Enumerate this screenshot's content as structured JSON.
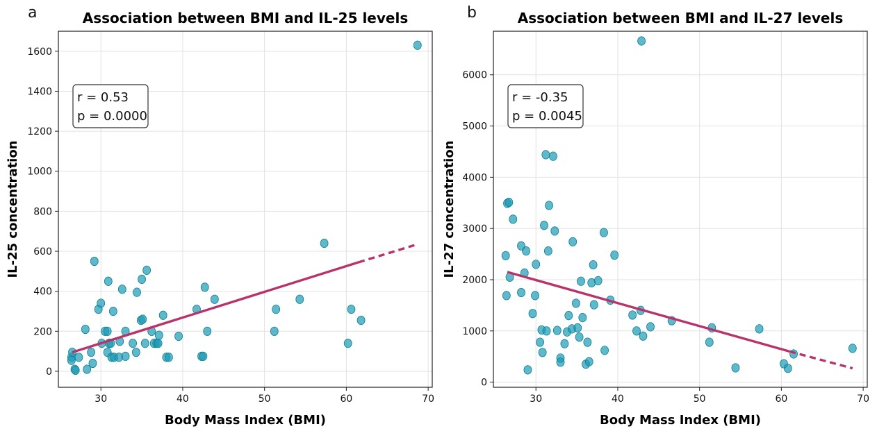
{
  "chart_data": [
    {
      "panel_label": "a",
      "type": "scatter",
      "title": "Association between BMI and IL-25 levels",
      "xlabel": "Body Mass Index (BMI)",
      "ylabel": "IL-25 concentration",
      "xlim": [
        24.8,
        70.5
      ],
      "ylim": [
        -80,
        1700
      ],
      "xticks": [
        30,
        40,
        50,
        60,
        70
      ],
      "yticks": [
        0,
        200,
        400,
        600,
        800,
        1000,
        1200,
        1400,
        1600
      ],
      "grid": true,
      "stats": {
        "r": "r = 0.53",
        "p": "p = 0.0000",
        "placement": "top-left"
      },
      "trendline": {
        "solid": [
          [
            26.5,
            95
          ],
          [
            61.5,
            545
          ]
        ],
        "dashed": [
          [
            61.5,
            545
          ],
          [
            68.7,
            635
          ]
        ]
      },
      "points": [
        [
          26.4,
          70
        ],
        [
          26.5,
          95
        ],
        [
          26.4,
          55
        ],
        [
          26.8,
          10
        ],
        [
          26.9,
          5
        ],
        [
          27.3,
          70
        ],
        [
          28.1,
          210
        ],
        [
          28.3,
          10
        ],
        [
          28.8,
          95
        ],
        [
          29.0,
          40
        ],
        [
          29.2,
          550
        ],
        [
          29.7,
          310
        ],
        [
          30.0,
          340
        ],
        [
          30.1,
          140
        ],
        [
          30.5,
          200
        ],
        [
          30.8,
          200
        ],
        [
          30.8,
          95
        ],
        [
          30.9,
          450
        ],
        [
          31.0,
          140
        ],
        [
          31.2,
          140
        ],
        [
          31.3,
          70
        ],
        [
          31.5,
          300
        ],
        [
          31.6,
          70
        ],
        [
          32.2,
          70
        ],
        [
          32.3,
          150
        ],
        [
          32.6,
          410
        ],
        [
          33.0,
          200
        ],
        [
          33.0,
          75
        ],
        [
          33.9,
          140
        ],
        [
          34.3,
          95
        ],
        [
          34.4,
          395
        ],
        [
          34.9,
          255
        ],
        [
          35.0,
          460
        ],
        [
          35.1,
          260
        ],
        [
          35.4,
          140
        ],
        [
          35.6,
          505
        ],
        [
          36.2,
          200
        ],
        [
          36.5,
          140
        ],
        [
          36.8,
          140
        ],
        [
          37.0,
          140
        ],
        [
          37.1,
          180
        ],
        [
          37.6,
          280
        ],
        [
          38.0,
          70
        ],
        [
          38.3,
          70
        ],
        [
          39.5,
          175
        ],
        [
          41.7,
          310
        ],
        [
          42.3,
          75
        ],
        [
          42.5,
          75
        ],
        [
          42.7,
          420
        ],
        [
          43.0,
          200
        ],
        [
          43.9,
          360
        ],
        [
          51.2,
          200
        ],
        [
          51.4,
          310
        ],
        [
          54.3,
          360
        ],
        [
          57.3,
          640
        ],
        [
          60.2,
          140
        ],
        [
          60.6,
          310
        ],
        [
          61.8,
          255
        ],
        [
          68.7,
          1630
        ]
      ]
    },
    {
      "panel_label": "b",
      "type": "scatter",
      "title": "Association between BMI and IL-27 levels",
      "xlabel": "Body Mass Index (BMI)",
      "ylabel": "IL-27 concentration",
      "xlim": [
        24.8,
        70.5
      ],
      "ylim": [
        -100,
        6850
      ],
      "xticks": [
        30,
        40,
        50,
        60,
        70
      ],
      "yticks": [
        0,
        1000,
        2000,
        3000,
        4000,
        5000,
        6000
      ],
      "grid": true,
      "stats": {
        "r": "r = -0.35",
        "p": "p = 0.0045",
        "placement": "top-left"
      },
      "trendline": {
        "solid": [
          [
            26.5,
            2150
          ],
          [
            61.0,
            600
          ]
        ],
        "dashed": [
          [
            61.0,
            600
          ],
          [
            68.7,
            270
          ]
        ]
      },
      "points": [
        [
          26.3,
          2470
        ],
        [
          26.4,
          1690
        ],
        [
          26.5,
          3490
        ],
        [
          26.7,
          3510
        ],
        [
          26.8,
          2050
        ],
        [
          27.2,
          3180
        ],
        [
          28.2,
          2660
        ],
        [
          28.2,
          1750
        ],
        [
          28.6,
          2130
        ],
        [
          28.8,
          2560
        ],
        [
          29.0,
          240
        ],
        [
          29.6,
          1340
        ],
        [
          29.9,
          1690
        ],
        [
          30.0,
          2300
        ],
        [
          30.5,
          780
        ],
        [
          30.7,
          1020
        ],
        [
          30.8,
          580
        ],
        [
          31.0,
          3060
        ],
        [
          31.2,
          4440
        ],
        [
          31.3,
          1000
        ],
        [
          31.5,
          2560
        ],
        [
          31.6,
          3450
        ],
        [
          32.1,
          4410
        ],
        [
          32.3,
          2950
        ],
        [
          32.6,
          1010
        ],
        [
          33.0,
          470
        ],
        [
          33.0,
          390
        ],
        [
          33.5,
          750
        ],
        [
          33.8,
          980
        ],
        [
          34.0,
          1300
        ],
        [
          34.4,
          1040
        ],
        [
          34.5,
          2740
        ],
        [
          34.9,
          1540
        ],
        [
          35.1,
          1060
        ],
        [
          35.3,
          880
        ],
        [
          35.5,
          1970
        ],
        [
          35.7,
          1260
        ],
        [
          36.1,
          350
        ],
        [
          36.3,
          780
        ],
        [
          36.5,
          400
        ],
        [
          36.8,
          1940
        ],
        [
          37.0,
          2290
        ],
        [
          37.1,
          1510
        ],
        [
          37.6,
          1980
        ],
        [
          38.3,
          2920
        ],
        [
          38.4,
          620
        ],
        [
          39.1,
          1600
        ],
        [
          39.6,
          2480
        ],
        [
          41.8,
          1310
        ],
        [
          42.3,
          1000
        ],
        [
          42.8,
          1400
        ],
        [
          42.9,
          6660
        ],
        [
          43.1,
          900
        ],
        [
          44.0,
          1080
        ],
        [
          46.6,
          1200
        ],
        [
          51.2,
          780
        ],
        [
          51.5,
          1060
        ],
        [
          54.4,
          280
        ],
        [
          57.3,
          1040
        ],
        [
          60.3,
          360
        ],
        [
          60.8,
          270
        ],
        [
          61.5,
          550
        ],
        [
          68.7,
          660
        ]
      ]
    }
  ]
}
